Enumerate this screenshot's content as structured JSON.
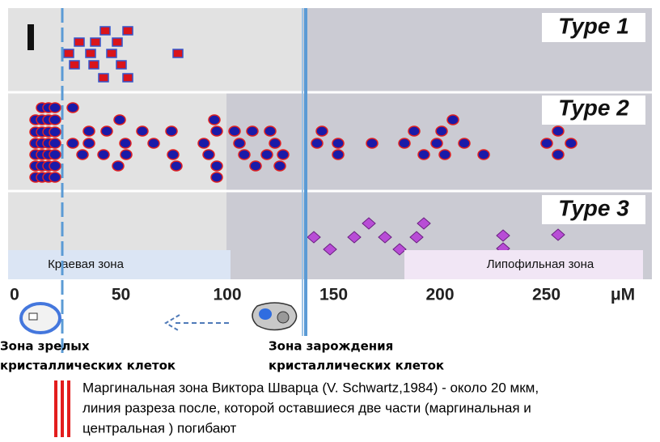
{
  "panels": {
    "rows": [
      {
        "label": "Type 1"
      },
      {
        "label": "Type 2"
      },
      {
        "label": "Type 3"
      }
    ]
  },
  "zones": {
    "marginal": "Краевая зона",
    "lipophilic": "Липофильная зона"
  },
  "axis": {
    "ticks": [
      "0",
      "50",
      "100",
      "150",
      "200",
      "250"
    ],
    "unit": "μM"
  },
  "labels": {
    "mature": [
      "Зона зрелых",
      "кристаллических клеток"
    ],
    "origin": [
      "Зона зарождения",
      "кристаллических клеток"
    ]
  },
  "note": [
    "Маргинальная  зона Виктора Шварца (V. Schwartz,1984) - около 20 мкм,",
    "линия  разреза после, которой  оставшиеся две части (маргинальная  и",
    "центральная  ) погибают"
  ]
}
